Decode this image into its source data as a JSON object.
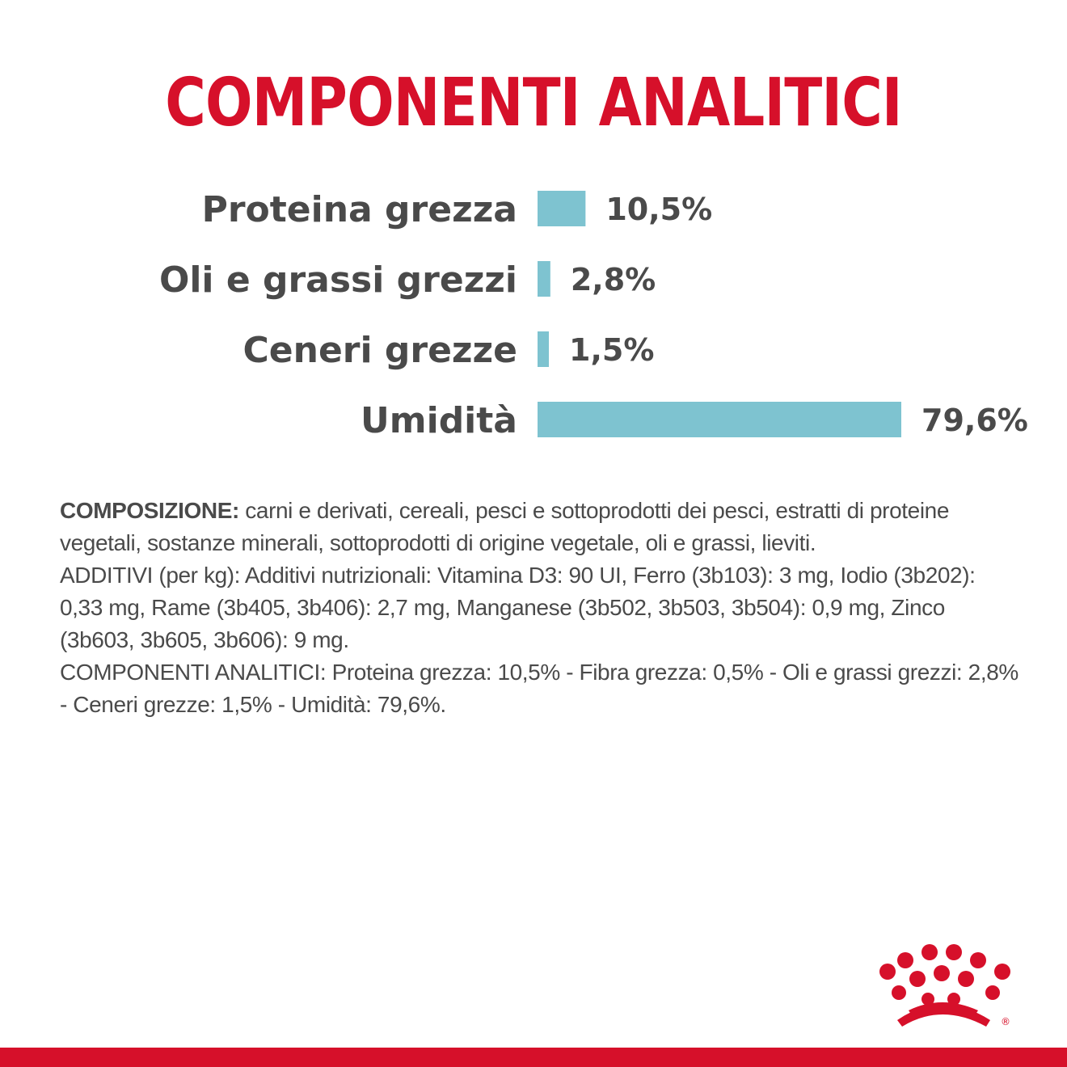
{
  "title": "COMPONENTI ANALITICI",
  "colors": {
    "title": "#d6102a",
    "bar": "#7ec3d0",
    "text": "#4a4a4a",
    "brand": "#d6102a"
  },
  "chart_data": {
    "type": "bar",
    "orientation": "horizontal",
    "title": "COMPONENTI ANALITICI",
    "categories": [
      "Proteina grezza",
      "Oli e grassi grezzi",
      "Ceneri grezze",
      "Umidità"
    ],
    "values": [
      10.5,
      2.8,
      1.5,
      79.6
    ],
    "value_labels": [
      "10,5%",
      "2,8%",
      "1,5%",
      "79,6%"
    ],
    "unit": "%",
    "xlabel": "",
    "ylabel": "",
    "grid": false,
    "legend": "none"
  },
  "composition": {
    "label": "COMPOSIZIONE:",
    "text": " carni e derivati, cereali, pesci e sottoprodotti dei pesci, estratti di proteine vegetali, sostanze minerali, sottoprodotti di origine vegetale, oli e grassi, lieviti.",
    "additives": "ADDITIVI (per kg): Additivi nutrizionali: Vitamina D3: 90 UI, Ferro (3b103): 3 mg, Iodio (3b202): 0,33 mg, Rame (3b405, 3b406): 2,7 mg, Manganese (3b502, 3b503, 3b504): 0,9 mg, Zinco (3b603, 3b605, 3b606): 9 mg.",
    "analytical": "COMPONENTI ANALITICI: Proteina grezza: 10,5% - Fibra grezza: 0,5% - Oli e grassi grezzi: 2,8% - Ceneri grezze: 1,5% - Umidità: 79,6%."
  },
  "logo": {
    "icon": "crown-logo-icon",
    "mark": "®"
  }
}
